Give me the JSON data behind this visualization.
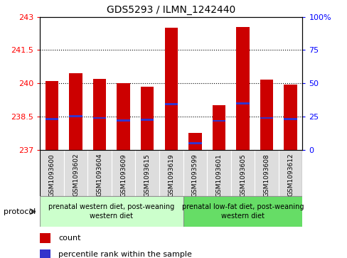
{
  "title": "GDS5293 / ILMN_1242440",
  "samples": [
    "GSM1093600",
    "GSM1093602",
    "GSM1093604",
    "GSM1093609",
    "GSM1093615",
    "GSM1093619",
    "GSM1093599",
    "GSM1093601",
    "GSM1093605",
    "GSM1093608",
    "GSM1093612"
  ],
  "expression_values": [
    240.1,
    240.45,
    240.2,
    240.0,
    239.85,
    242.5,
    237.75,
    239.0,
    242.55,
    240.15,
    239.95
  ],
  "percentile_values": [
    238.38,
    238.5,
    238.43,
    238.33,
    238.35,
    239.05,
    237.3,
    238.3,
    239.1,
    238.43,
    238.38
  ],
  "y_min": 237,
  "y_max": 243,
  "y_ticks_left": [
    237,
    238.5,
    240,
    241.5,
    243
  ],
  "y_ticks_right": [
    0,
    25,
    50,
    75,
    100
  ],
  "bar_color": "#cc0000",
  "percentile_color": "#3333cc",
  "bar_width": 0.55,
  "group1_label": "prenatal western diet, post-weaning\nwestern diet",
  "group2_label": "prenatal low-fat diet, post-weaning\nwestern diet",
  "group1_n": 6,
  "group2_n": 5,
  "group1_color": "#ccffcc",
  "group2_color": "#66dd66",
  "cell_color": "#dddddd",
  "protocol_label": "protocol",
  "legend_count": "count",
  "legend_percentile": "percentile rank within the sample"
}
